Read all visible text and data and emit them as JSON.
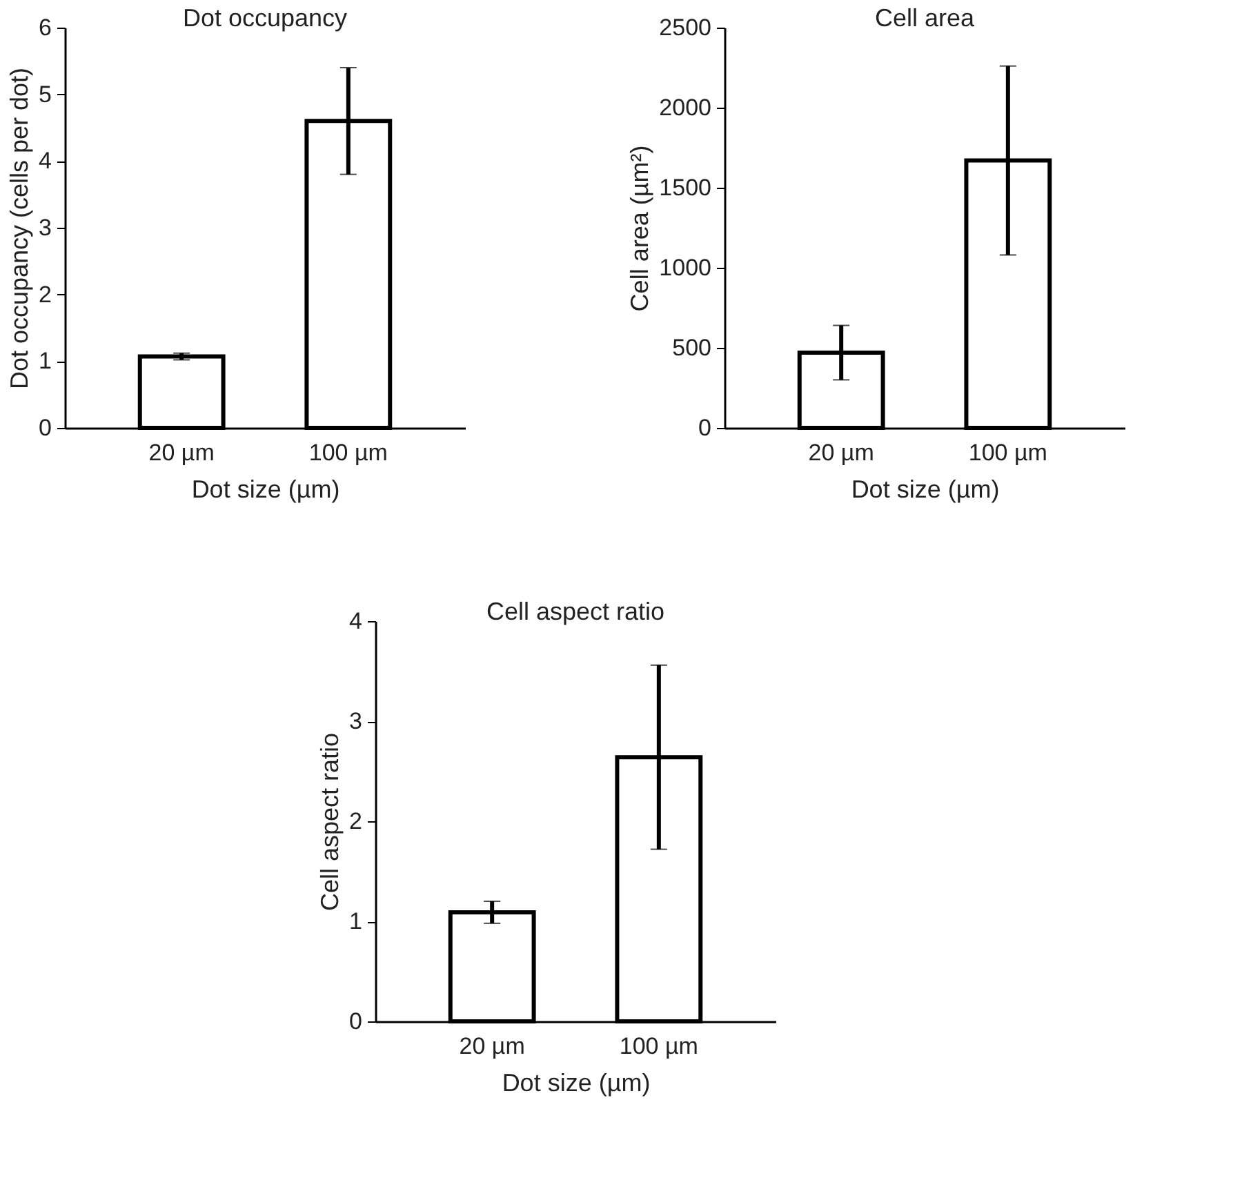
{
  "chart_data": [
    {
      "type": "bar",
      "title": "Dot occupancy",
      "xlabel": "Dot size (µm)",
      "ylabel": "Dot occupancy (cells per dot)",
      "categories": [
        "20 µm",
        "100 µm"
      ],
      "values": [
        1.07,
        4.6
      ],
      "errors": [
        0.05,
        0.8
      ],
      "color": "#ffffff",
      "ylim": [
        0,
        6
      ],
      "yticks": [
        0,
        1,
        2,
        3,
        4,
        5,
        6
      ],
      "grid": false
    },
    {
      "type": "bar",
      "title": "Cell area",
      "xlabel": "Dot size (µm)",
      "ylabel": "Cell area (µm²)",
      "categories": [
        "20 µm",
        "100 µm"
      ],
      "values": [
        470,
        1670
      ],
      "errors": [
        170,
        590
      ],
      "color": "#ffffff",
      "ylim": [
        0,
        2500
      ],
      "yticks": [
        0,
        500,
        1000,
        1500,
        2000,
        2500
      ],
      "grid": false
    },
    {
      "type": "bar",
      "title": "Cell aspect ratio",
      "xlabel": "Dot size (µm)",
      "ylabel": "Cell aspect ratio",
      "categories": [
        "20 µm",
        "100 µm"
      ],
      "values": [
        1.09,
        2.64
      ],
      "errors": [
        0.11,
        0.92
      ],
      "color": "#ffffff",
      "ylim": [
        0,
        4
      ],
      "yticks": [
        0,
        1,
        2,
        3,
        4
      ],
      "grid": false
    }
  ]
}
